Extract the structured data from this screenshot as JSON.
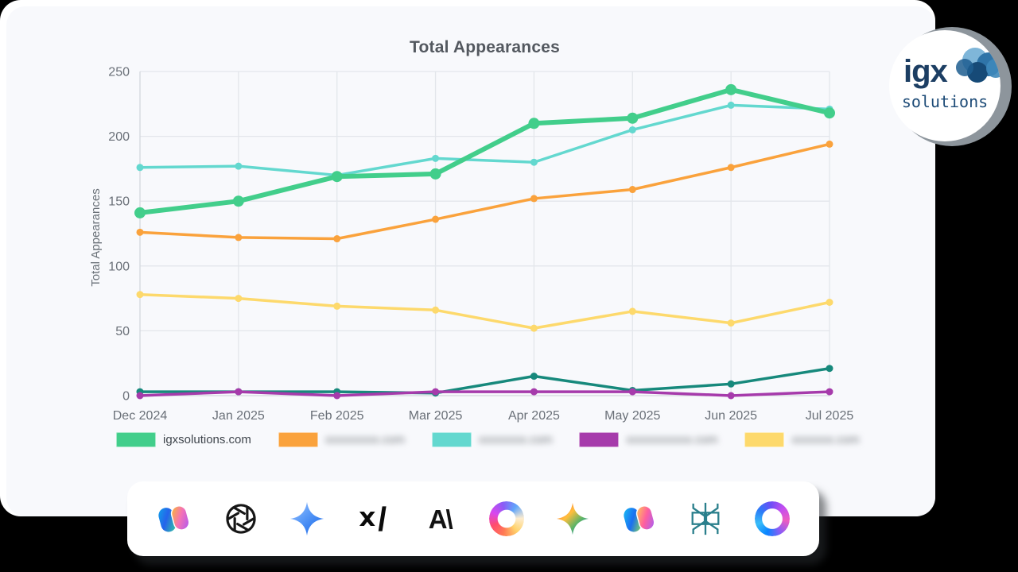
{
  "page": {
    "outer_background": "#000000",
    "card_background": "#f8f9fc",
    "halo_background": "#ffffff"
  },
  "chart_data": {
    "type": "line",
    "title": "Total Appearances",
    "ylabel": "Total Appearances",
    "categories": [
      "Dec 2024",
      "Jan 2025",
      "Feb 2025",
      "Mar 2025",
      "Apr 2025",
      "May 2025",
      "Jun 2025",
      "Jul 2025"
    ],
    "ylim": [
      0,
      250
    ],
    "yticks": [
      0,
      50,
      100,
      150,
      200,
      250
    ],
    "grid": true,
    "legend_position": "bottom",
    "draw_order": [
      2,
      1,
      4,
      5,
      3,
      0
    ],
    "series": [
      {
        "name": "igxsolutions",
        "label": "igxsolutions.com",
        "label_blurred": false,
        "color": "#42ce8b",
        "line_width": 6,
        "point_radius": 7,
        "in_legend": true,
        "values": [
          141,
          150,
          169,
          171,
          210,
          214,
          236,
          218
        ]
      },
      {
        "name": "blurred-domain-2",
        "label": "xxxxxxxxx.com",
        "label_blurred": true,
        "color": "#faa23c",
        "line_width": 3.5,
        "point_radius": 4.5,
        "in_legend": true,
        "values": [
          126,
          122,
          121,
          136,
          152,
          159,
          176,
          194
        ]
      },
      {
        "name": "blurred-domain-3",
        "label": "xxxxxxxx.com",
        "label_blurred": true,
        "color": "#63d8cf",
        "line_width": 3.5,
        "point_radius": 4.5,
        "in_legend": true,
        "values": [
          176,
          177,
          170,
          183,
          180,
          205,
          224,
          221
        ]
      },
      {
        "name": "blurred-domain-4",
        "label": "xxxxxxxxxxx.com",
        "label_blurred": true,
        "color": "#a63bab",
        "line_width": 3.5,
        "point_radius": 4.5,
        "in_legend": true,
        "values": [
          0,
          3,
          0,
          3,
          3,
          3,
          0,
          3
        ]
      },
      {
        "name": "blurred-domain-5",
        "label": "xxxxxxx.com",
        "label_blurred": true,
        "color": "#fdd96c",
        "line_width": 3.5,
        "point_radius": 4.5,
        "in_legend": true,
        "values": [
          78,
          75,
          69,
          66,
          52,
          65,
          56,
          72
        ]
      },
      {
        "name": "unlabeled-teal-series",
        "label": null,
        "label_blurred": false,
        "color": "#17897c",
        "line_width": 3.5,
        "point_radius": 4.5,
        "in_legend": false,
        "values": [
          3,
          3,
          3,
          2,
          15,
          4,
          9,
          21
        ]
      }
    ],
    "axis_color": "#d3d7dd",
    "grid_color": "#e3e6eb",
    "tick_color": "#6a7078"
  },
  "logo_badge": {
    "line1": "igx",
    "line2": "solutions",
    "text_color": "#1c3e63",
    "ring_color": "#8d959c"
  },
  "logo_bar": {
    "icons": [
      "microsoft-copilot",
      "openai",
      "google-gemini",
      "xai",
      "anthropic",
      "apple-intelligence",
      "gemini-sparkle",
      "microsoft-copilot-alt",
      "perplexity",
      "meta-ai"
    ]
  }
}
